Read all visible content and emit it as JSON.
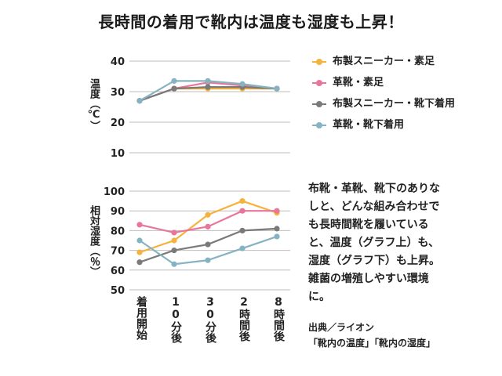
{
  "title": "長時間の着用で靴内は温度も湿度も上昇！",
  "colors": {
    "fabric_bare": "#f5b23d",
    "leather_bare": "#e8769a",
    "fabric_socks": "#7a7a7a",
    "leather_socks": "#86b3c2",
    "grid": "#bdbdbd"
  },
  "chart_data": [
    {
      "type": "line",
      "ylabel": "温度（℃）",
      "ylim": [
        10,
        40
      ],
      "yticks": [
        "10",
        "20",
        "30",
        "40"
      ],
      "categories": [
        "着用開始",
        "10分後",
        "30分後",
        "2時間後",
        "8時間後"
      ],
      "series": [
        {
          "name": "布製スニーカー・素足",
          "values": [
            27,
            31,
            31,
            31,
            31
          ]
        },
        {
          "name": "革靴・素足",
          "values": [
            27,
            31,
            33,
            32,
            31
          ]
        },
        {
          "name": "布製スニーカー・靴下着用",
          "values": [
            27,
            31,
            31.5,
            31.5,
            31
          ]
        },
        {
          "name": "革靴・靴下着用",
          "values": [
            27,
            33.5,
            33.5,
            32.5,
            31
          ]
        }
      ]
    },
    {
      "type": "line",
      "ylabel": "相対湿度（％）",
      "ylim": [
        50,
        100
      ],
      "yticks": [
        "50",
        "60",
        "70",
        "80",
        "90",
        "100"
      ],
      "categories": [
        "着用開始",
        "10分後",
        "30分後",
        "2時間後",
        "8時間後"
      ],
      "series": [
        {
          "name": "布製スニーカー・素足",
          "values": [
            69,
            75,
            88,
            95,
            89
          ]
        },
        {
          "name": "革靴・素足",
          "values": [
            83,
            79,
            82,
            90,
            90
          ]
        },
        {
          "name": "布製スニーカー・靴下着用",
          "values": [
            64,
            70,
            73,
            80,
            81
          ]
        },
        {
          "name": "革靴・靴下着用",
          "values": [
            75,
            63,
            65,
            71,
            77
          ]
        }
      ]
    }
  ],
  "legend": [
    {
      "label": "布製スニーカー・素足",
      "color": "#f5b23d"
    },
    {
      "label": "革靴・素足",
      "color": "#e8769a"
    },
    {
      "label": "布製スニーカー・靴下着用",
      "color": "#7a7a7a"
    },
    {
      "label": "革靴・靴下着用",
      "color": "#86b3c2"
    }
  ],
  "note": "布靴・革靴、靴下のありなしと、どんな組み合わせでも長時間靴を履いていると、温度（グラフ上）も、湿度（グラフ下）も上昇。雑菌の増殖しやすい環境に。",
  "source": {
    "line1": "出典／ライオン",
    "line2": "「靴内の温度」「靴内の湿度」"
  }
}
